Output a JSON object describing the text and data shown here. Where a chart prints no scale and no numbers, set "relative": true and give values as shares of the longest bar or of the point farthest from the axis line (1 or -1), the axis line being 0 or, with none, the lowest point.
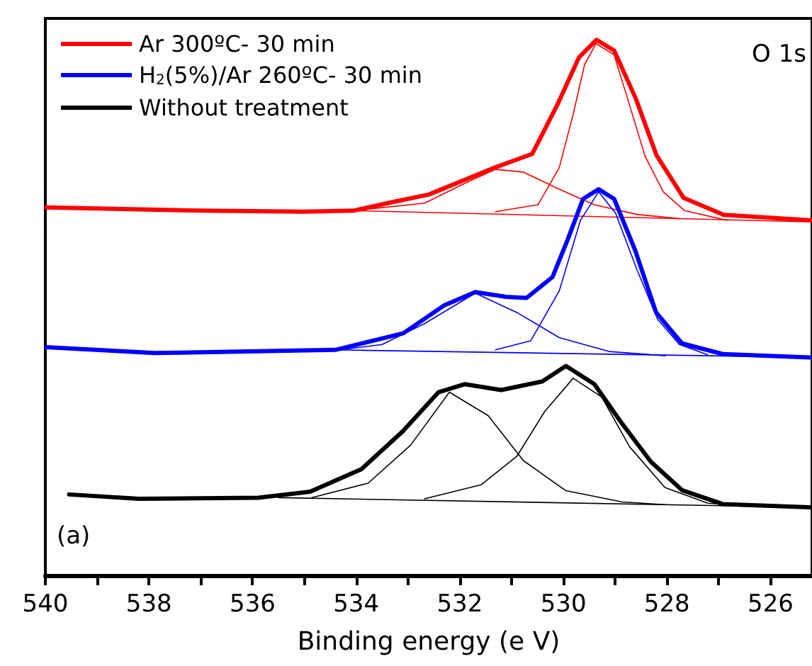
{
  "chart_data": {
    "type": "line",
    "relative": true,
    "xlabel": "Binding energy (e V)",
    "xlim": [
      540,
      525.2
    ],
    "xticks": [
      540,
      {
        "value": 539,
        "label": null
      },
      538,
      {
        "value": 537,
        "label": null
      },
      536,
      {
        "value": 535,
        "label": null
      },
      534,
      {
        "value": 533,
        "label": null
      },
      532,
      {
        "value": 531,
        "label": null
      },
      530,
      {
        "value": 529,
        "label": null
      },
      528,
      {
        "value": 527,
        "label": null
      },
      526
    ],
    "legend": "top left",
    "marker": "none",
    "line_style": "solid",
    "grid": false,
    "annotations": [
      "O 1s",
      "(a)"
    ],
    "series": [
      {
        "name": "Ar 300ºC- 30 min",
        "color": "#ff0000",
        "x": [
          539.98,
          537,
          535,
          534.05,
          533.3,
          532.6,
          531.31,
          530.6,
          530.11,
          529.7,
          529.36,
          529.02,
          528.6,
          528.2,
          527.68,
          526.9,
          525.2
        ],
        "values": [
          0.687,
          0.681,
          0.679,
          0.681,
          0.697,
          0.711,
          0.762,
          0.787,
          0.88,
          0.967,
          1,
          0.98,
          0.89,
          0.784,
          0.705,
          0.673,
          0.663
        ]
      },
      {
        "color": "#ff0000",
        "x": [
          534.05,
          532.68,
          531.86,
          531.31,
          530.77,
          530.08,
          529.4,
          528.58,
          527.76
        ],
        "values": [
          0.681,
          0.695,
          0.734,
          0.758,
          0.753,
          0.721,
          0.692,
          0.674,
          0.666
        ]
      },
      {
        "color": "#ff0000",
        "x": [
          531.31,
          530.49,
          530.08,
          529.81,
          529.59,
          529.37,
          529.02,
          528.75,
          528.42,
          528.07,
          527.66,
          526.84
        ],
        "values": [
          0.679,
          0.692,
          0.761,
          0.861,
          0.954,
          0.993,
          0.972,
          0.887,
          0.782,
          0.716,
          0.681,
          0.663
        ]
      },
      {
        "color": "#ff0000",
        "x": [
          534.05,
          525.2
        ],
        "values": [
          0.681,
          0.66
        ]
      },
      {
        "name": "H$_{2}$(5%)/Ar 260ºC- 30 min",
        "color": "#0000ff",
        "x": [
          539.98,
          537.89,
          534.4,
          533.09,
          532.3,
          531.7,
          531.1,
          530.71,
          530.21,
          529.92,
          529.62,
          529.32,
          529.02,
          528.61,
          528.21,
          527.71,
          526.91,
          525.25
        ],
        "values": [
          0.426,
          0.415,
          0.421,
          0.452,
          0.504,
          0.529,
          0.52,
          0.518,
          0.557,
          0.626,
          0.703,
          0.721,
          0.703,
          0.606,
          0.491,
          0.433,
          0.413,
          0.407
        ]
      },
      {
        "color": "#0000ff",
        "x": [
          534.32,
          533.5,
          532.68,
          531.7,
          530.9,
          530.08,
          529.12,
          528.03
        ],
        "values": [
          0.421,
          0.431,
          0.47,
          0.527,
          0.491,
          0.444,
          0.418,
          0.41
        ]
      },
      {
        "color": "#0000ff",
        "x": [
          531.31,
          530.63,
          530.08,
          529.67,
          529.32,
          528.99,
          528.58,
          528.18,
          527.76,
          527.22
        ],
        "values": [
          0.421,
          0.438,
          0.531,
          0.663,
          0.716,
          0.676,
          0.571,
          0.478,
          0.431,
          0.412
        ]
      },
      {
        "color": "#0000ff",
        "x": [
          534.4,
          525.2
        ],
        "values": [
          0.421,
          0.407
        ]
      },
      {
        "name": "Without treatment",
        "color": "#000000",
        "x": [
          539.54,
          538.19,
          535.89,
          534.89,
          533.9,
          533.1,
          532.41,
          531.9,
          531.2,
          530.41,
          529.95,
          529.4,
          528.91,
          528.31,
          527.71,
          526.92,
          525.25
        ],
        "values": [
          0.151,
          0.143,
          0.145,
          0.156,
          0.198,
          0.269,
          0.342,
          0.357,
          0.346,
          0.362,
          0.391,
          0.357,
          0.289,
          0.212,
          0.159,
          0.133,
          0.127
        ]
      },
      {
        "color": "#000000",
        "x": [
          534.86,
          533.77,
          532.95,
          532.2,
          531.45,
          530.77,
          529.95,
          528.86,
          528.04
        ],
        "values": [
          0.145,
          0.172,
          0.243,
          0.342,
          0.298,
          0.214,
          0.158,
          0.137,
          0.132
        ]
      },
      {
        "color": "#000000",
        "x": [
          532.68,
          531.59,
          530.9,
          530.36,
          529.81,
          529.26,
          528.72,
          528.04,
          527.22,
          526.54
        ],
        "values": [
          0.143,
          0.169,
          0.222,
          0.306,
          0.368,
          0.333,
          0.24,
          0.164,
          0.135,
          0.129
        ]
      },
      {
        "color": "#000000",
        "x": [
          535.5,
          525.2
        ],
        "values": [
          0.145,
          0.127
        ]
      }
    ]
  }
}
